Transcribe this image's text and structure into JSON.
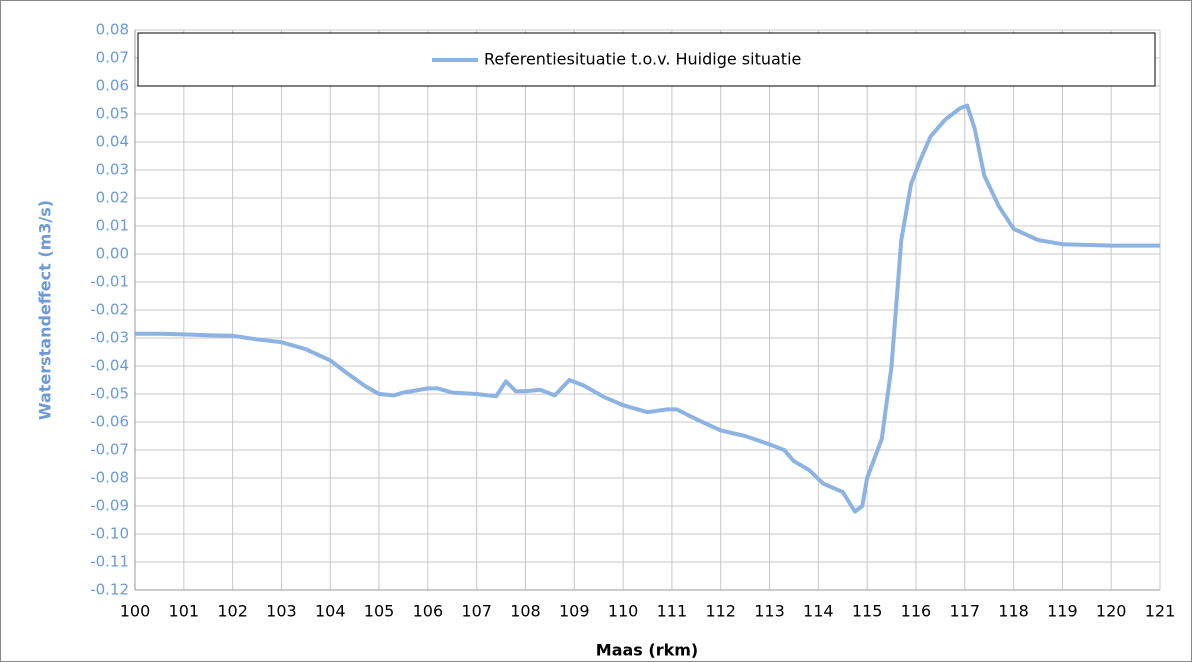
{
  "chart_data": {
    "type": "line",
    "xlabel": "Maas (rkm)",
    "ylabel": "Waterstandeffect (m3/s)",
    "legend": "top",
    "grid": true,
    "xlim": [
      100,
      121
    ],
    "ylim": [
      -0.12,
      0.08
    ],
    "xticks": [
      100,
      101,
      102,
      103,
      104,
      105,
      106,
      107,
      108,
      109,
      110,
      111,
      112,
      113,
      114,
      115,
      116,
      117,
      118,
      119,
      120,
      121
    ],
    "yticks": [
      -0.12,
      -0.11,
      {
        "value": -0.1,
        "label": "-0.10"
      },
      -0.09,
      -0.08,
      -0.07,
      -0.06,
      -0.05,
      -0.04,
      -0.03,
      -0.02,
      -0.01,
      {
        "value": 0,
        "label": "0.00"
      },
      0.01,
      0.02,
      0.03,
      0.04,
      0.05,
      0.06,
      0.07,
      0.08
    ],
    "series": [
      {
        "name": "Referentiesituatie t.o.v. Huidige situatie",
        "color": "#8db3e2",
        "x": [
          100,
          100.5,
          101,
          101.5,
          102,
          102.5,
          103,
          103.5,
          104,
          104.3,
          104.7,
          105,
          105.3,
          105.5,
          106,
          106.2,
          106.5,
          107,
          107.4,
          107.6,
          107.8,
          108,
          108.3,
          108.6,
          108.9,
          109.2,
          109.6,
          110,
          110.5,
          110.9,
          111.1,
          111.5,
          112,
          112.5,
          113,
          113.3,
          113.5,
          113.8,
          114.1,
          114.5,
          114.75,
          114.9,
          115,
          115.3,
          115.5,
          115.7,
          115.9,
          116.1,
          116.3,
          116.6,
          116.9,
          117.05,
          117.2,
          117.4,
          117.7,
          118,
          118.5,
          119,
          120,
          121
        ],
        "values": [
          -0.0285,
          -0.0285,
          -0.0287,
          -0.029,
          -0.0292,
          -0.0305,
          -0.0315,
          -0.034,
          -0.038,
          -0.042,
          -0.047,
          -0.05,
          -0.0505,
          -0.0495,
          -0.048,
          -0.048,
          -0.0495,
          -0.05,
          -0.0508,
          -0.0455,
          -0.049,
          -0.049,
          -0.0485,
          -0.0505,
          -0.045,
          -0.047,
          -0.051,
          -0.054,
          -0.0565,
          -0.0555,
          -0.0555,
          -0.059,
          -0.063,
          -0.065,
          -0.068,
          -0.07,
          -0.074,
          -0.077,
          -0.082,
          -0.085,
          -0.092,
          -0.09,
          -0.08,
          -0.066,
          -0.04,
          0.005,
          0.025,
          0.034,
          0.042,
          0.048,
          0.052,
          0.053,
          0.045,
          0.028,
          0.017,
          0.009,
          0.005,
          0.0035,
          0.003,
          0.003
        ]
      }
    ]
  }
}
